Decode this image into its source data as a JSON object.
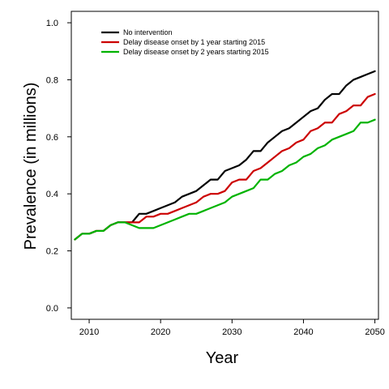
{
  "chart_data": {
    "type": "line",
    "xlabel": "Year",
    "ylabel": "Prevalence (in millions)",
    "xlim": [
      2007.5,
      2050.5
    ],
    "ylim": [
      -0.04,
      1.04
    ],
    "x_ticks": [
      2010,
      2020,
      2030,
      2040,
      2050
    ],
    "x_tick_labels": [
      "2010",
      "2020",
      "2030",
      "2040",
      "2050"
    ],
    "y_ticks": [
      0.0,
      0.2,
      0.4,
      0.6,
      0.8,
      1.0
    ],
    "y_tick_labels": [
      "0.0",
      "0.2",
      "0.4",
      "0.6",
      "0.8",
      "1.0"
    ],
    "grid": false,
    "legend_position": "top-left",
    "x": [
      2008,
      2009,
      2010,
      2011,
      2012,
      2013,
      2014,
      2015,
      2016,
      2017,
      2018,
      2019,
      2020,
      2021,
      2022,
      2023,
      2024,
      2025,
      2026,
      2027,
      2028,
      2029,
      2030,
      2031,
      2032,
      2033,
      2034,
      2035,
      2036,
      2037,
      2038,
      2039,
      2040,
      2041,
      2042,
      2043,
      2044,
      2045,
      2046,
      2047,
      2048,
      2049,
      2050
    ],
    "series": [
      {
        "name": "No intervention",
        "color": "#000000",
        "values": [
          0.24,
          0.26,
          0.26,
          0.27,
          0.27,
          0.29,
          0.3,
          0.3,
          0.3,
          0.33,
          0.33,
          0.34,
          0.35,
          0.36,
          0.37,
          0.39,
          0.4,
          0.41,
          0.43,
          0.45,
          0.45,
          0.48,
          0.49,
          0.5,
          0.52,
          0.55,
          0.55,
          0.58,
          0.6,
          0.62,
          0.63,
          0.65,
          0.67,
          0.69,
          0.7,
          0.73,
          0.75,
          0.75,
          0.78,
          0.8,
          0.81,
          0.82,
          0.83
        ]
      },
      {
        "name": "Delay disease onset by 1 year starting 2015",
        "color": "#cc0000",
        "values": [
          0.24,
          0.26,
          0.26,
          0.27,
          0.27,
          0.29,
          0.3,
          0.3,
          0.3,
          0.3,
          0.32,
          0.32,
          0.33,
          0.33,
          0.34,
          0.35,
          0.36,
          0.37,
          0.39,
          0.4,
          0.4,
          0.41,
          0.44,
          0.45,
          0.45,
          0.48,
          0.49,
          0.51,
          0.53,
          0.55,
          0.56,
          0.58,
          0.59,
          0.62,
          0.63,
          0.65,
          0.65,
          0.68,
          0.69,
          0.71,
          0.71,
          0.74,
          0.75
        ]
      },
      {
        "name": "Delay disease onset by 2 years starting 2015",
        "color": "#00b300",
        "values": [
          0.24,
          0.26,
          0.26,
          0.27,
          0.27,
          0.29,
          0.3,
          0.3,
          0.29,
          0.28,
          0.28,
          0.28,
          0.29,
          0.3,
          0.31,
          0.32,
          0.33,
          0.33,
          0.34,
          0.35,
          0.36,
          0.37,
          0.39,
          0.4,
          0.41,
          0.42,
          0.45,
          0.45,
          0.47,
          0.48,
          0.5,
          0.51,
          0.53,
          0.54,
          0.56,
          0.57,
          0.59,
          0.6,
          0.61,
          0.62,
          0.65,
          0.65,
          0.66
        ]
      }
    ]
  }
}
